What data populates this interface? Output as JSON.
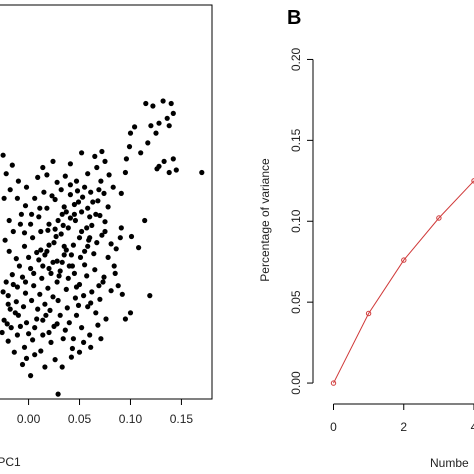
{
  "chart_data": [
    {
      "type": "scatter",
      "panel_label": "",
      "xlabel": "PC1",
      "ylabel": "",
      "xlim": [
        -0.03,
        0.18
      ],
      "ylim": [
        -0.12,
        0.2
      ],
      "x_ticks": [
        0.0,
        0.05,
        0.1,
        0.15
      ],
      "x_tick_labels": [
        "0.00",
        "0.05",
        "0.10",
        "0.15"
      ],
      "grid": false,
      "marker_color": "#000000",
      "points": [
        [
          0.115,
          0.12
        ],
        [
          0.122,
          0.118
        ],
        [
          0.132,
          0.122
        ],
        [
          0.14,
          0.12
        ],
        [
          0.142,
          0.112
        ],
        [
          0.136,
          0.108
        ],
        [
          0.128,
          0.104
        ],
        [
          0.12,
          0.102
        ],
        [
          0.125,
          0.096
        ],
        [
          0.117,
          0.088
        ],
        [
          0.138,
          0.102
        ],
        [
          0.104,
          0.101
        ],
        [
          0.1,
          0.096
        ],
        [
          0.099,
          0.085
        ],
        [
          0.096,
          0.075
        ],
        [
          0.11,
          0.08
        ],
        [
          0.128,
          0.069
        ],
        [
          0.133,
          0.073
        ],
        [
          0.138,
          0.064
        ],
        [
          0.145,
          0.066
        ],
        [
          0.17,
          0.064
        ],
        [
          0.126,
          0.067
        ],
        [
          0.142,
          0.075
        ],
        [
          0.095,
          0.064
        ],
        [
          0.07,
          0.029
        ],
        [
          0.075,
          0.024
        ],
        [
          0.062,
          0.021
        ],
        [
          0.072,
          0.013
        ],
        [
          0.081,
          0.006
        ],
        [
          0.09,
          0.011
        ],
        [
          0.086,
          0.002
        ],
        [
          0.067,
          0.007
        ],
        [
          0.055,
          0.0
        ],
        [
          0.06,
          0.011
        ],
        [
          0.078,
          -0.005
        ],
        [
          0.084,
          -0.012
        ],
        [
          0.074,
          -0.021
        ],
        [
          0.069,
          -0.028
        ],
        [
          0.062,
          -0.033
        ],
        [
          0.05,
          -0.027
        ],
        [
          0.045,
          -0.018
        ],
        [
          0.055,
          -0.011
        ],
        [
          0.042,
          -0.003
        ],
        [
          0.035,
          0.004
        ],
        [
          0.028,
          -0.008
        ],
        [
          0.02,
          -0.014
        ],
        [
          0.013,
          -0.022
        ],
        [
          0.005,
          -0.028
        ],
        [
          -0.003,
          -0.034
        ],
        [
          -0.012,
          -0.041
        ],
        [
          -0.02,
          -0.036
        ],
        [
          -0.015,
          -0.027
        ],
        [
          -0.006,
          -0.021
        ],
        [
          0.002,
          -0.014
        ],
        [
          0.01,
          -0.007
        ],
        [
          0.018,
          0.0
        ],
        [
          0.025,
          0.007
        ],
        [
          0.032,
          0.014
        ],
        [
          0.039,
          0.019
        ],
        [
          0.046,
          0.025
        ],
        [
          0.052,
          0.016
        ],
        [
          0.059,
          0.009
        ],
        [
          0.064,
          -0.002
        ],
        [
          0.07,
          -0.039
        ],
        [
          0.058,
          -0.045
        ],
        [
          0.047,
          -0.052
        ],
        [
          0.038,
          -0.046
        ],
        [
          0.029,
          -0.04
        ],
        [
          0.021,
          -0.048
        ],
        [
          0.014,
          -0.056
        ],
        [
          0.006,
          -0.062
        ],
        [
          -0.002,
          -0.058
        ],
        [
          -0.01,
          -0.052
        ],
        [
          -0.018,
          -0.047
        ],
        [
          -0.024,
          -0.056
        ],
        [
          -0.026,
          -0.066
        ],
        [
          -0.02,
          -0.073
        ],
        [
          -0.011,
          -0.068
        ],
        [
          -0.004,
          -0.078
        ],
        [
          0.004,
          -0.072
        ],
        [
          0.012,
          -0.081
        ],
        [
          0.02,
          -0.066
        ],
        [
          0.028,
          -0.059
        ],
        [
          0.036,
          -0.064
        ],
        [
          0.044,
          -0.071
        ],
        [
          0.052,
          -0.062
        ],
        [
          0.06,
          -0.068
        ],
        [
          0.068,
          -0.06
        ],
        [
          0.076,
          -0.055
        ],
        [
          0.1,
          -0.05
        ],
        [
          0.119,
          -0.036
        ],
        [
          0.095,
          -0.055
        ],
        [
          0.033,
          0.03
        ],
        [
          0.026,
          0.042
        ],
        [
          0.018,
          0.035
        ],
        [
          0.01,
          0.028
        ],
        [
          0.002,
          0.022
        ],
        [
          -0.007,
          0.03
        ],
        [
          -0.015,
          0.016
        ],
        [
          -0.023,
          0.009
        ],
        [
          -0.019,
          0.0
        ],
        [
          -0.012,
          -0.006
        ],
        [
          -0.004,
          0.004
        ],
        [
          0.004,
          0.011
        ],
        [
          0.012,
          0.016
        ],
        [
          0.02,
          0.022
        ],
        [
          0.029,
          0.025
        ],
        [
          0.037,
          0.032
        ],
        [
          0.045,
          0.038
        ],
        [
          0.053,
          0.044
        ],
        [
          0.061,
          0.048
        ],
        [
          0.068,
          0.041
        ],
        [
          0.074,
          0.047
        ],
        [
          0.083,
          0.052
        ],
        [
          0.091,
          0.047
        ],
        [
          0.078,
          0.036
        ],
        [
          0.066,
          0.03
        ],
        [
          0.058,
          0.035
        ],
        [
          0.049,
          0.04
        ],
        [
          0.041,
          0.046
        ],
        [
          0.015,
          0.048
        ],
        [
          0.006,
          0.043
        ],
        [
          -0.003,
          0.037
        ],
        [
          -0.011,
          0.043
        ],
        [
          -0.018,
          0.05
        ],
        [
          -0.024,
          0.043
        ],
        [
          -0.022,
          0.063
        ],
        [
          -0.016,
          0.07
        ],
        [
          -0.025,
          0.078
        ],
        [
          0.009,
          0.06
        ],
        [
          0.018,
          0.062
        ],
        [
          0.028,
          0.056
        ],
        [
          0.036,
          0.061
        ],
        [
          0.047,
          0.057
        ],
        [
          0.055,
          0.052
        ],
        [
          0.071,
          0.057
        ],
        [
          0.079,
          0.062
        ],
        [
          0.075,
          0.073
        ],
        [
          0.067,
          0.068
        ],
        [
          0.058,
          0.063
        ],
        [
          0.114,
          0.025
        ],
        [
          0.091,
          0.019
        ],
        [
          0.101,
          0.012
        ],
        [
          0.108,
          0.003
        ],
        [
          0.072,
          0.081
        ],
        [
          0.065,
          0.077
        ],
        [
          0.052,
          0.08
        ],
        [
          0.041,
          0.071
        ],
        [
          -0.004,
          0.015
        ],
        [
          0.008,
          -0.001
        ],
        [
          0.016,
          -0.003
        ],
        [
          0.024,
          -0.009
        ],
        [
          0.031,
          -0.016
        ],
        [
          0.039,
          -0.022
        ],
        [
          0.047,
          -0.029
        ],
        [
          0.054,
          -0.036
        ],
        [
          0.061,
          -0.042
        ],
        [
          0.066,
          -0.05
        ],
        [
          0.046,
          -0.038
        ],
        [
          0.037,
          -0.031
        ],
        [
          0.028,
          -0.025
        ],
        [
          0.019,
          -0.03
        ],
        [
          0.011,
          -0.035
        ],
        [
          0.003,
          -0.04
        ],
        [
          -0.005,
          -0.045
        ],
        [
          -0.013,
          -0.05
        ],
        [
          -0.021,
          -0.059
        ],
        [
          -0.017,
          -0.062
        ],
        [
          -0.008,
          -0.061
        ],
        [
          0.0,
          -0.067
        ],
        [
          0.008,
          -0.055
        ],
        [
          0.016,
          -0.043
        ],
        [
          0.024,
          -0.037
        ],
        [
          0.031,
          -0.052
        ],
        [
          0.04,
          -0.058
        ],
        [
          0.049,
          -0.044
        ],
        [
          0.057,
          -0.02
        ],
        [
          0.065,
          -0.015
        ],
        [
          0.073,
          -0.025
        ],
        [
          0.081,
          -0.032
        ],
        [
          0.088,
          -0.028
        ],
        [
          0.026,
          -0.088
        ],
        [
          0.033,
          -0.094
        ],
        [
          0.042,
          -0.086
        ],
        [
          0.05,
          -0.082
        ],
        [
          0.016,
          -0.094
        ],
        [
          -0.006,
          -0.092
        ],
        [
          -0.014,
          -0.082
        ],
        [
          0.002,
          -0.101
        ],
        [
          0.029,
          -0.116
        ],
        [
          0.061,
          -0.078
        ],
        [
          0.071,
          -0.071
        ],
        [
          0.035,
          -0.003
        ],
        [
          0.044,
          0.005
        ],
        [
          0.05,
          0.011
        ],
        [
          0.057,
          0.019
        ],
        [
          0.02,
          0.005
        ],
        [
          0.012,
          0.001
        ],
        [
          0.0,
          -0.005
        ],
        [
          -0.009,
          -0.012
        ],
        [
          -0.016,
          -0.019
        ],
        [
          -0.022,
          -0.025
        ],
        [
          -0.025,
          -0.033
        ],
        [
          -0.02,
          -0.043
        ],
        [
          0.009,
          -0.047
        ],
        [
          0.017,
          -0.052
        ],
        [
          0.025,
          -0.061
        ],
        [
          0.034,
          -0.071
        ],
        [
          0.043,
          -0.079
        ],
        [
          0.022,
          -0.074
        ],
        [
          0.014,
          -0.068
        ],
        [
          0.006,
          -0.084
        ],
        [
          -0.002,
          -0.087
        ],
        [
          0.054,
          -0.074
        ],
        [
          0.033,
          -0.009
        ],
        [
          0.04,
          -0.012
        ],
        [
          0.027,
          0.012
        ],
        [
          0.019,
          0.017
        ],
        [
          0.041,
          0.027
        ],
        [
          0.034,
          0.021
        ],
        [
          0.026,
          0.018
        ],
        [
          -0.01,
          0.057
        ],
        [
          -0.002,
          0.052
        ],
        [
          0.014,
          0.068
        ],
        [
          0.024,
          0.073
        ],
        [
          -0.019,
          0.025
        ],
        [
          0.063,
          0.04
        ],
        [
          0.069,
          0.05
        ],
        [
          0.048,
          0.049
        ],
        [
          0.041,
          0.054
        ],
        [
          0.032,
          0.05
        ],
        [
          0.023,
          0.045
        ],
        [
          0.011,
          0.035
        ],
        [
          0.003,
          0.03
        ],
        [
          -0.008,
          0.022
        ],
        [
          0.075,
          0.016
        ],
        [
          0.085,
          -0.018
        ],
        [
          0.092,
          -0.035
        ],
        [
          0.058,
          0.004
        ],
        [
          0.051,
          -0.005
        ],
        [
          0.043,
          -0.012
        ],
        [
          0.037,
          0.001
        ],
        [
          0.03,
          -0.02
        ],
        [
          0.022,
          -0.018
        ],
        [
          0.014,
          -0.012
        ],
        [
          0.005,
          -0.018
        ],
        [
          -0.003,
          -0.025
        ],
        [
          -0.011,
          -0.029
        ],
        [
          0.06,
          0.028
        ],
        [
          0.052,
          0.032
        ],
        [
          0.045,
          0.03
        ],
        [
          0.035,
          0.036
        ]
      ]
    },
    {
      "type": "line",
      "panel_label": "B",
      "xlabel": "Numbe",
      "ylabel": "Percentage of variance",
      "xlim": [
        -0.1,
        4.0
      ],
      "ylim": [
        -0.008,
        0.225
      ],
      "x_ticks": [
        0,
        2,
        4
      ],
      "x_tick_labels": [
        "0",
        "2",
        "4"
      ],
      "y_ticks": [
        0.0,
        0.05,
        0.1,
        0.15,
        0.2
      ],
      "y_tick_labels": [
        "0.00",
        "0.05",
        "0.10",
        "0.15",
        "0.20"
      ],
      "grid": false,
      "line_color": "#d03a3a",
      "series": [
        {
          "x": [
            0,
            1,
            2,
            3,
            4
          ],
          "values": [
            0.0,
            0.043,
            0.076,
            0.102,
            0.125
          ]
        }
      ]
    }
  ]
}
